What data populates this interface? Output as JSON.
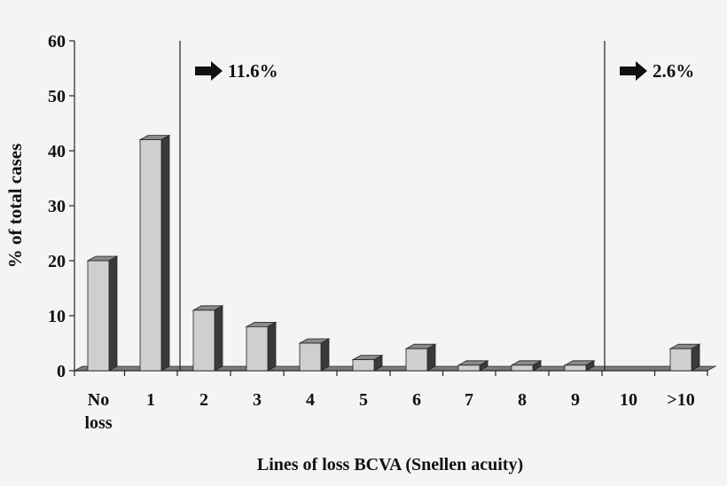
{
  "chart_data": {
    "type": "bar",
    "categories": [
      "No loss",
      "1",
      "2",
      "3",
      "4",
      "5",
      "6",
      "7",
      "8",
      "9",
      "10",
      ">10"
    ],
    "values": [
      20,
      42,
      11,
      8,
      5,
      2,
      4,
      1,
      1,
      1,
      0,
      4
    ],
    "ylabel": "% of total cases",
    "xlabel": "Lines of loss BCVA (Snellen acuity)",
    "ylim": [
      0,
      60
    ],
    "yticks": [
      0,
      10,
      20,
      30,
      40,
      50,
      60
    ],
    "grid": false,
    "legend": "none",
    "annotations": [
      {
        "text": "11.6%",
        "after_category": "1"
      },
      {
        "text": "2.6%",
        "after_category": "9"
      }
    ],
    "colors": {
      "bar_front": "#cfcfcf",
      "bar_side": "#3a3a3a",
      "bar_top": "#8a8a8a"
    }
  }
}
